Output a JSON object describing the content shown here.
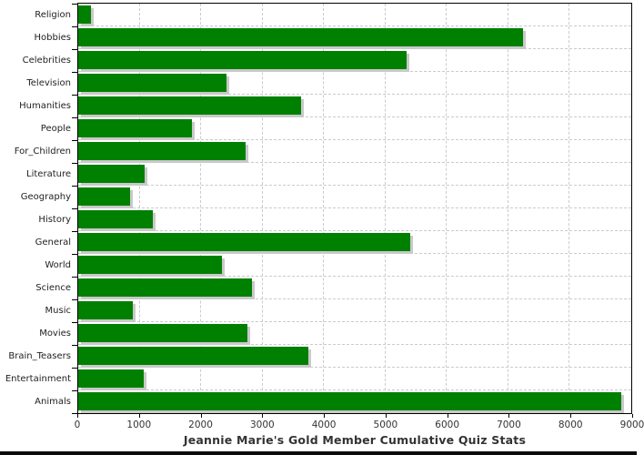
{
  "chart_data": {
    "type": "bar",
    "orientation": "horizontal",
    "title": "Jeannie Marie's Gold Member Cumulative Quiz Stats",
    "categories": [
      "Religion",
      "Hobbies",
      "Celebrities",
      "Television",
      "Humanities",
      "People",
      "For_Children",
      "Literature",
      "Geography",
      "History",
      "General",
      "World",
      "Science",
      "Music",
      "Movies",
      "Brain_Teasers",
      "Entertainment",
      "Animals"
    ],
    "values": [
      210,
      7240,
      5340,
      2420,
      3620,
      1850,
      2720,
      1080,
      840,
      1210,
      5400,
      2340,
      2830,
      890,
      2760,
      3740,
      1060,
      8830
    ],
    "xlim": [
      0,
      9000
    ],
    "x_tick_values": [
      0,
      1000,
      2000,
      3000,
      4000,
      5000,
      6000,
      7000,
      8000,
      9000
    ],
    "x_tick_labels": [
      "0",
      "1000",
      "2000",
      "3000",
      "4000",
      "5000",
      "6000",
      "7000",
      "8000",
      "9000"
    ],
    "grid": "dashed",
    "legend": "none",
    "colors": {
      "bar": "#008000",
      "bar_shadow": "#c9c9c9",
      "gridline": "#c6ccd2",
      "axis": "#000000",
      "tick_text": "#333333",
      "category_text": "#222222",
      "title_text": "#333333",
      "background": "#ffffff",
      "bottom_strip": "#0b0b0b"
    }
  }
}
